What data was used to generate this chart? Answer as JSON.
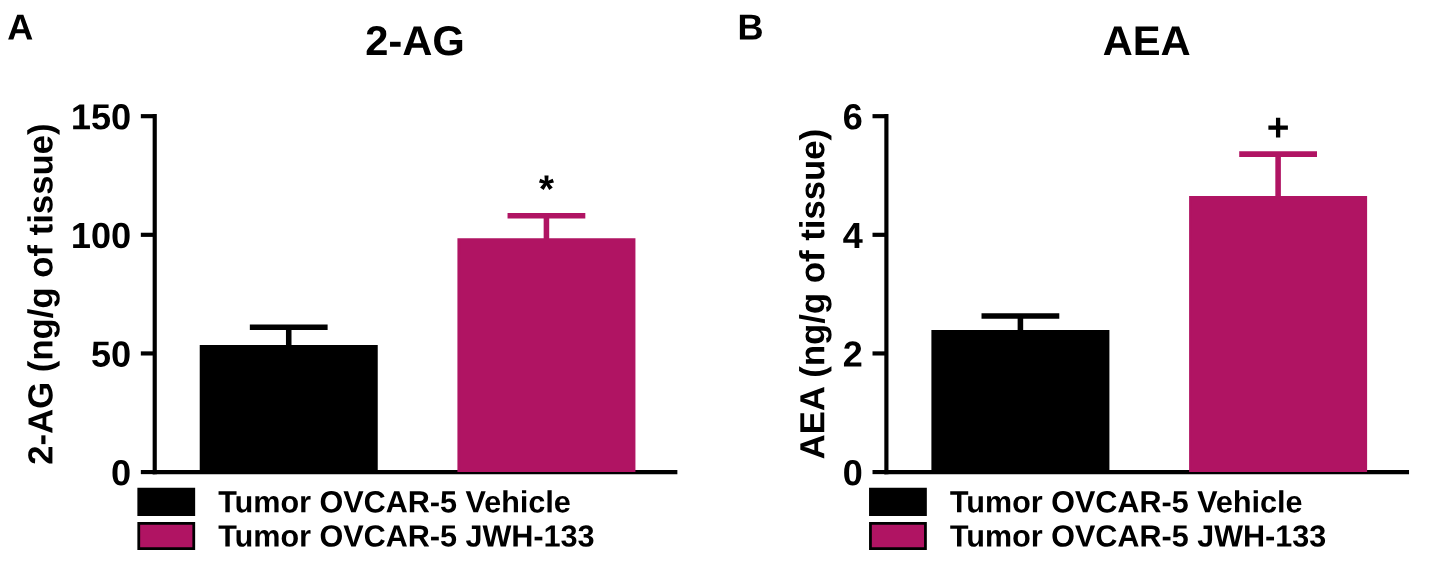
{
  "chart_data": [
    {
      "type": "bar",
      "title": "2-AG",
      "ylabel": "2-AG (ng/g of tissue)",
      "categories": [
        null,
        null
      ],
      "series": [
        {
          "name": "Tumor OVCAR-5 Vehicle",
          "color": "#000000",
          "values": [
            53,
            null
          ],
          "errors": [
            8,
            null
          ]
        },
        {
          "name": "Tumor OVCAR-5 JWH-133",
          "color": "#b01463",
          "values": [
            null,
            98
          ],
          "errors": [
            null,
            10
          ]
        }
      ],
      "ylim": [
        0,
        150
      ],
      "yticks": [
        0,
        50,
        100,
        150
      ],
      "grid": false,
      "legend": "bottom",
      "annotations": [
        "A",
        "*"
      ]
    },
    {
      "type": "bar",
      "title": "AEA",
      "ylabel": "AEA (ng/g of tissue)",
      "categories": [
        null,
        null
      ],
      "series": [
        {
          "name": "Tumor OVCAR-5 Vehicle",
          "color": "#000000",
          "values": [
            2.37,
            null
          ],
          "errors": [
            0.26,
            null
          ]
        },
        {
          "name": "Tumor OVCAR-5 JWH-133",
          "color": "#b01463",
          "values": [
            null,
            4.63
          ],
          "errors": [
            null,
            0.73
          ]
        }
      ],
      "ylim": [
        0,
        6
      ],
      "yticks": [
        0,
        2,
        4,
        6
      ],
      "grid": false,
      "legend": "bottom",
      "annotations": [
        "B",
        "+"
      ]
    }
  ]
}
